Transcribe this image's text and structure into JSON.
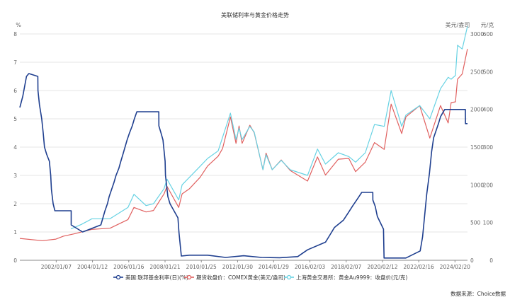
{
  "chart_data": {
    "type": "line",
    "title": "美联储利率与黄金价格走势",
    "source": "数据来源：Choice数据",
    "colors": {
      "fed_rate": "#1f3f8f",
      "comex": "#e0605f",
      "shanghai": "#67d2e3",
      "grid": "#e6e6e6",
      "axis_text": "#666666"
    },
    "axes": {
      "left": {
        "unit": "%",
        "ticks": [
          0,
          1,
          2,
          3,
          4,
          5,
          6,
          7,
          8
        ],
        "range": [
          0,
          8
        ]
      },
      "right1": {
        "unit": "美元/盎司",
        "ticks": [
          0,
          500,
          1000,
          1500,
          2000,
          2500,
          3000
        ],
        "range": [
          0,
          3000
        ]
      },
      "right2": {
        "unit": "元/克",
        "ticks": [
          0,
          100,
          200,
          300,
          400,
          500,
          600
        ],
        "range": [
          0,
          600
        ]
      },
      "x": {
        "range": [
          "2000-01-01",
          "2024-10-31"
        ],
        "tick_labels": [
          "2002/01/07",
          "2004/01/12",
          "2006/01/16",
          "2008/01/21",
          "2010/01/25",
          "2012/01/30",
          "2014/01/29",
          "2016/02/03",
          "2018/02/07",
          "2020/02/12",
          "2022/02/16",
          "2024/02/20"
        ]
      }
    },
    "legend": {
      "position": "bottom",
      "items": [
        {
          "key": "fed_rate",
          "label": "美国:联邦基金利率(日)(%)"
        },
        {
          "key": "comex",
          "label": "期货收盘价：COMEX黄金(美元/盎司)"
        },
        {
          "key": "shanghai",
          "label": "上海黄金交易所：黄金Au9999：收盘价(元/克)"
        }
      ]
    },
    "series": [
      {
        "key": "fed_rate",
        "name": "美国:联邦基金利率(日)(%)",
        "axis": "left",
        "points": [
          [
            "2000-01-01",
            5.4
          ],
          [
            "2000-03-01",
            5.8
          ],
          [
            "2000-05-15",
            6.5
          ],
          [
            "2000-07-01",
            6.6
          ],
          [
            "2000-12-31",
            6.5
          ],
          [
            "2001-01-03",
            6.0
          ],
          [
            "2001-02-01",
            5.5
          ],
          [
            "2001-03-20",
            5.0
          ],
          [
            "2001-04-18",
            4.5
          ],
          [
            "2001-05-15",
            4.0
          ],
          [
            "2001-06-27",
            3.75
          ],
          [
            "2001-08-21",
            3.5
          ],
          [
            "2001-09-17",
            3.0
          ],
          [
            "2001-10-02",
            2.5
          ],
          [
            "2001-11-06",
            2.0
          ],
          [
            "2001-12-11",
            1.75
          ],
          [
            "2002-11-06",
            1.75
          ],
          [
            "2002-11-07",
            1.25
          ],
          [
            "2003-06-25",
            1.0
          ],
          [
            "2004-06-30",
            1.25
          ],
          [
            "2004-08-10",
            1.5
          ],
          [
            "2004-09-21",
            1.75
          ],
          [
            "2004-11-10",
            2.0
          ],
          [
            "2004-12-14",
            2.25
          ],
          [
            "2005-02-02",
            2.5
          ],
          [
            "2005-03-22",
            2.75
          ],
          [
            "2005-05-03",
            3.0
          ],
          [
            "2005-06-30",
            3.25
          ],
          [
            "2005-08-09",
            3.5
          ],
          [
            "2005-09-20",
            3.75
          ],
          [
            "2005-11-01",
            4.0
          ],
          [
            "2005-12-13",
            4.25
          ],
          [
            "2006-01-31",
            4.5
          ],
          [
            "2006-03-28",
            4.75
          ],
          [
            "2006-05-10",
            5.0
          ],
          [
            "2006-06-29",
            5.25
          ],
          [
            "2007-09-17",
            5.25
          ],
          [
            "2007-09-18",
            4.75
          ],
          [
            "2007-10-31",
            4.5
          ],
          [
            "2007-12-11",
            4.25
          ],
          [
            "2008-01-22",
            3.5
          ],
          [
            "2008-01-30",
            3.0
          ],
          [
            "2008-03-18",
            2.25
          ],
          [
            "2008-04-30",
            2.0
          ],
          [
            "2008-10-08",
            1.5
          ],
          [
            "2008-10-29",
            1.0
          ],
          [
            "2008-12-16",
            0.15
          ],
          [
            "2009-06-01",
            0.18
          ],
          [
            "2010-06-01",
            0.18
          ],
          [
            "2011-06-01",
            0.1
          ],
          [
            "2012-06-01",
            0.16
          ],
          [
            "2013-06-01",
            0.1
          ],
          [
            "2014-06-01",
            0.09
          ],
          [
            "2015-06-01",
            0.13
          ],
          [
            "2015-12-17",
            0.37
          ],
          [
            "2016-12-15",
            0.64
          ],
          [
            "2017-03-16",
            0.9
          ],
          [
            "2017-06-15",
            1.16
          ],
          [
            "2017-12-14",
            1.42
          ],
          [
            "2018-03-22",
            1.68
          ],
          [
            "2018-06-14",
            1.91
          ],
          [
            "2018-09-27",
            2.18
          ],
          [
            "2018-12-20",
            2.4
          ],
          [
            "2019-07-31",
            2.4
          ],
          [
            "2019-08-01",
            2.13
          ],
          [
            "2019-09-19",
            1.9
          ],
          [
            "2019-10-31",
            1.55
          ],
          [
            "2020-03-04",
            1.1
          ],
          [
            "2020-03-16",
            0.08
          ],
          [
            "2021-06-01",
            0.08
          ],
          [
            "2022-03-17",
            0.33
          ],
          [
            "2022-05-05",
            0.83
          ],
          [
            "2022-06-16",
            1.58
          ],
          [
            "2022-07-28",
            2.33
          ],
          [
            "2022-09-22",
            3.08
          ],
          [
            "2022-11-03",
            3.83
          ],
          [
            "2022-12-15",
            4.33
          ],
          [
            "2023-02-02",
            4.58
          ],
          [
            "2023-03-23",
            4.83
          ],
          [
            "2023-05-04",
            5.08
          ],
          [
            "2023-07-27",
            5.33
          ],
          [
            "2024-09-18",
            5.33
          ],
          [
            "2024-09-19",
            4.83
          ],
          [
            "2024-10-31",
            4.83
          ]
        ]
      },
      {
        "key": "comex",
        "name": "期货收盘价：COMEX黄金(美元/盎司)",
        "axis": "right1",
        "points": [
          [
            "2000-01-01",
            290
          ],
          [
            "2001-04-01",
            260
          ],
          [
            "2002-01-01",
            280
          ],
          [
            "2002-06-01",
            320
          ],
          [
            "2003-01-01",
            350
          ],
          [
            "2004-01-01",
            410
          ],
          [
            "2005-01-01",
            425
          ],
          [
            "2006-01-01",
            540
          ],
          [
            "2006-05-01",
            700
          ],
          [
            "2007-01-01",
            640
          ],
          [
            "2007-06-01",
            660
          ],
          [
            "2008-01-01",
            880
          ],
          [
            "2008-03-01",
            980
          ],
          [
            "2008-10-24",
            700
          ],
          [
            "2009-01-01",
            880
          ],
          [
            "2009-06-01",
            950
          ],
          [
            "2010-01-01",
            1100
          ],
          [
            "2010-06-01",
            1250
          ],
          [
            "2011-01-01",
            1380
          ],
          [
            "2011-04-01",
            1480
          ],
          [
            "2011-09-06",
            1900
          ],
          [
            "2011-12-29",
            1550
          ],
          [
            "2012-02-28",
            1780
          ],
          [
            "2012-05-01",
            1550
          ],
          [
            "2012-10-04",
            1790
          ],
          [
            "2013-01-01",
            1690
          ],
          [
            "2013-06-27",
            1200
          ],
          [
            "2013-08-28",
            1420
          ],
          [
            "2014-01-01",
            1200
          ],
          [
            "2014-07-01",
            1330
          ],
          [
            "2015-01-01",
            1190
          ],
          [
            "2015-12-17",
            1050
          ],
          [
            "2016-07-06",
            1370
          ],
          [
            "2016-12-15",
            1130
          ],
          [
            "2017-09-01",
            1340
          ],
          [
            "2018-04-01",
            1350
          ],
          [
            "2018-08-16",
            1175
          ],
          [
            "2019-03-01",
            1300
          ],
          [
            "2019-09-04",
            1560
          ],
          [
            "2020-03-19",
            1470
          ],
          [
            "2020-08-06",
            2070
          ],
          [
            "2021-03-08",
            1680
          ],
          [
            "2021-06-01",
            1900
          ],
          [
            "2022-03-08",
            2050
          ],
          [
            "2022-09-28",
            1620
          ],
          [
            "2023-05-03",
            2050
          ],
          [
            "2023-10-05",
            1820
          ],
          [
            "2023-12-04",
            2090
          ],
          [
            "2024-03-01",
            2100
          ],
          [
            "2024-04-12",
            2400
          ],
          [
            "2024-07-17",
            2470
          ],
          [
            "2024-10-30",
            2800
          ]
        ]
      },
      {
        "key": "shanghai",
        "name": "上海黄金交易所：黄金Au9999：收盘价(元/克)",
        "axis": "right2",
        "points": [
          [
            "2002-10-30",
            83
          ],
          [
            "2003-06-01",
            95
          ],
          [
            "2004-01-01",
            110
          ],
          [
            "2005-01-01",
            110
          ],
          [
            "2006-01-01",
            140
          ],
          [
            "2006-05-01",
            175
          ],
          [
            "2007-01-01",
            145
          ],
          [
            "2007-06-01",
            150
          ],
          [
            "2008-01-01",
            190
          ],
          [
            "2008-03-01",
            215
          ],
          [
            "2008-10-24",
            160
          ],
          [
            "2009-01-01",
            200
          ],
          [
            "2009-12-01",
            245
          ],
          [
            "2010-06-01",
            270
          ],
          [
            "2011-01-01",
            290
          ],
          [
            "2011-09-06",
            390
          ],
          [
            "2011-12-29",
            320
          ],
          [
            "2012-02-28",
            350
          ],
          [
            "2012-05-01",
            320
          ],
          [
            "2012-10-04",
            355
          ],
          [
            "2013-01-01",
            340
          ],
          [
            "2013-06-27",
            240
          ],
          [
            "2013-08-28",
            280
          ],
          [
            "2014-01-01",
            240
          ],
          [
            "2014-07-01",
            265
          ],
          [
            "2015-01-01",
            240
          ],
          [
            "2015-12-17",
            225
          ],
          [
            "2016-07-06",
            295
          ],
          [
            "2016-12-15",
            255
          ],
          [
            "2017-09-01",
            285
          ],
          [
            "2018-04-01",
            275
          ],
          [
            "2018-08-16",
            260
          ],
          [
            "2019-03-01",
            285
          ],
          [
            "2019-09-04",
            360
          ],
          [
            "2020-03-19",
            355
          ],
          [
            "2020-08-06",
            450
          ],
          [
            "2021-03-08",
            355
          ],
          [
            "2021-06-01",
            385
          ],
          [
            "2022-03-08",
            410
          ],
          [
            "2022-09-28",
            375
          ],
          [
            "2023-05-03",
            455
          ],
          [
            "2023-10-05",
            485
          ],
          [
            "2023-12-04",
            480
          ],
          [
            "2024-03-01",
            490
          ],
          [
            "2024-04-12",
            570
          ],
          [
            "2024-07-17",
            560
          ],
          [
            "2024-10-30",
            620
          ]
        ]
      }
    ]
  }
}
